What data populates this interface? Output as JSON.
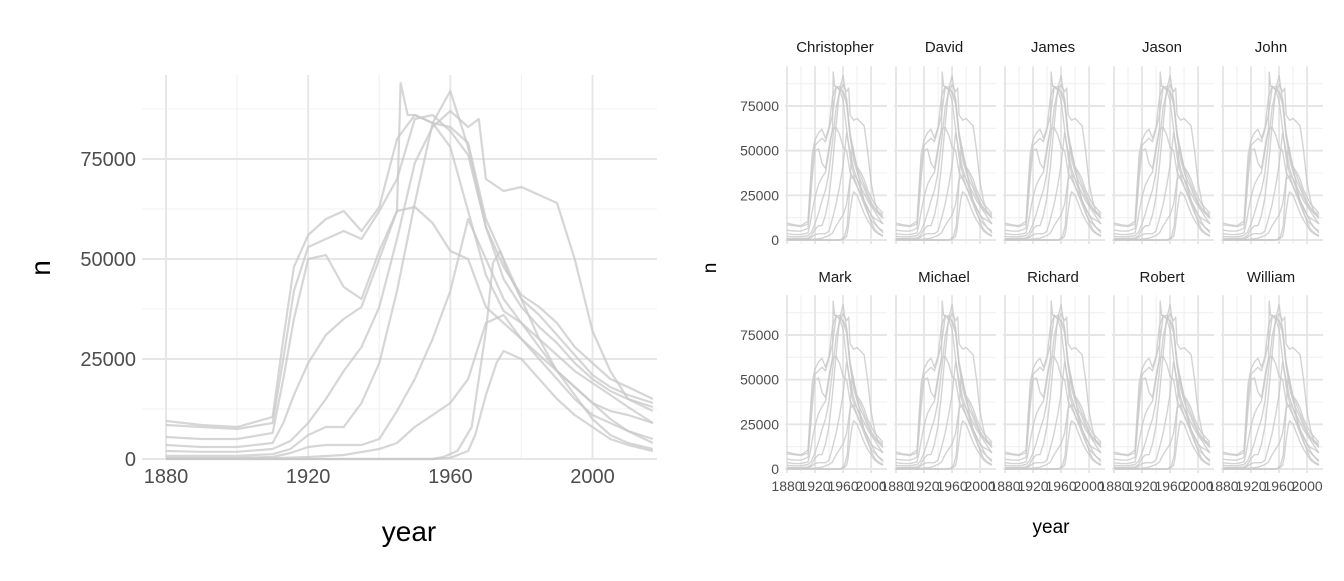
{
  "chart_data": [
    {
      "type": "line",
      "panel": "left",
      "xlabel": "year",
      "ylabel": "n",
      "xlim": [
        1880,
        2017
      ],
      "ylim": [
        0,
        95000
      ],
      "x_ticks": [
        1880,
        1920,
        1960,
        2000
      ],
      "y_ticks": [
        0,
        25000,
        50000,
        75000
      ],
      "grid": true,
      "line_color": "#c8c8c8",
      "series": [
        {
          "x": [
            1880,
            1890,
            1900,
            1910,
            1913,
            1916,
            1920,
            1925,
            1930,
            1935,
            1940,
            1945,
            1950,
            1955,
            1960,
            1965,
            1970,
            1975,
            1980,
            1985,
            1990,
            1995,
            2000,
            2005,
            2010,
            2017
          ],
          "values": [
            9500,
            8500,
            8000,
            10500,
            30000,
            48000,
            56000,
            60000,
            62000,
            57000,
            63000,
            80000,
            86000,
            84000,
            83000,
            79000,
            60000,
            50000,
            40000,
            36000,
            31000,
            26000,
            21000,
            18000,
            16000,
            14000
          ]
        },
        {
          "x": [
            1880,
            1890,
            1900,
            1910,
            1913,
            1916,
            1920,
            1925,
            1930,
            1935,
            1940,
            1945,
            1950,
            1955,
            1960,
            1965,
            1970,
            1975,
            1980,
            1985,
            1990,
            1995,
            2000,
            2005,
            2010,
            2017
          ],
          "values": [
            8500,
            8000,
            7500,
            9000,
            25000,
            42000,
            53000,
            55000,
            57000,
            55000,
            62000,
            70000,
            85000,
            86000,
            82000,
            76000,
            58000,
            45000,
            38000,
            33000,
            29000,
            24000,
            20000,
            17000,
            15000,
            13000
          ]
        },
        {
          "x": [
            1880,
            1890,
            1900,
            1910,
            1913,
            1916,
            1920,
            1925,
            1930,
            1935,
            1940,
            1945,
            1946,
            1948,
            1950,
            1955,
            1960,
            1965,
            1970,
            1975,
            1980,
            1985,
            1990,
            1995,
            2000,
            2005,
            2010,
            2017
          ],
          "values": [
            5500,
            5000,
            5000,
            6500,
            20000,
            35000,
            50000,
            51000,
            43000,
            40000,
            52000,
            62000,
            94000,
            86000,
            86000,
            84000,
            78000,
            62000,
            46000,
            37000,
            34000,
            28000,
            22000,
            18000,
            14000,
            12000,
            11000,
            9000
          ]
        },
        {
          "x": [
            1880,
            1890,
            1900,
            1910,
            1913,
            1916,
            1920,
            1925,
            1930,
            1935,
            1940,
            1945,
            1950,
            1955,
            1960,
            1965,
            1970,
            1975,
            1980,
            1985,
            1990,
            1995,
            2000,
            2005,
            2010,
            2017
          ],
          "values": [
            3500,
            3000,
            3000,
            4000,
            9000,
            16000,
            24000,
            31000,
            35000,
            38000,
            50000,
            62000,
            63000,
            59000,
            52000,
            50000,
            38000,
            34000,
            30000,
            25000,
            20000,
            15000,
            11000,
            9000,
            7000,
            5000
          ]
        },
        {
          "x": [
            1880,
            1890,
            1900,
            1910,
            1915,
            1920,
            1925,
            1930,
            1935,
            1940,
            1945,
            1950,
            1955,
            1960,
            1965,
            1968,
            1970,
            1975,
            1980,
            1985,
            1990,
            1995,
            2000,
            2005,
            2010,
            2017
          ],
          "values": [
            2000,
            1800,
            1800,
            2500,
            4500,
            9000,
            15000,
            22000,
            28000,
            38000,
            55000,
            74000,
            83000,
            87000,
            83000,
            85000,
            70000,
            67000,
            68000,
            66000,
            64000,
            50000,
            32000,
            22000,
            15000,
            12000
          ]
        },
        {
          "x": [
            1880,
            1890,
            1900,
            1910,
            1915,
            1920,
            1925,
            1930,
            1935,
            1940,
            1945,
            1950,
            1955,
            1960,
            1965,
            1970,
            1975,
            1980,
            1985,
            1990,
            1995,
            2000,
            2005,
            2010,
            2017
          ],
          "values": [
            800,
            800,
            800,
            1200,
            2500,
            6000,
            8000,
            8000,
            14000,
            24000,
            42000,
            64000,
            84000,
            92000,
            78000,
            58000,
            48000,
            41000,
            38000,
            34000,
            28000,
            24000,
            20000,
            18000,
            15000
          ]
        },
        {
          "x": [
            1880,
            1890,
            1900,
            1910,
            1915,
            1920,
            1925,
            1930,
            1935,
            1940,
            1945,
            1950,
            1955,
            1960,
            1965,
            1970,
            1975,
            1980,
            1985,
            1990,
            1995,
            2000,
            2005,
            2010,
            2017
          ],
          "values": [
            300,
            300,
            300,
            500,
            1500,
            3000,
            3500,
            3500,
            3500,
            5000,
            12000,
            20000,
            30000,
            42000,
            60000,
            50000,
            40000,
            34000,
            30000,
            26000,
            22000,
            19000,
            16000,
            13000,
            9000
          ]
        },
        {
          "x": [
            1880,
            1890,
            1900,
            1910,
            1920,
            1930,
            1940,
            1945,
            1950,
            1955,
            1960,
            1965,
            1970,
            1975,
            1980,
            1985,
            1990,
            1995,
            2000,
            2005,
            2010,
            2017
          ],
          "values": [
            100,
            100,
            100,
            200,
            500,
            1000,
            2500,
            4000,
            8000,
            11000,
            14000,
            20000,
            34000,
            36000,
            30000,
            26000,
            22000,
            18000,
            14000,
            10000,
            7000,
            4000
          ]
        },
        {
          "x": [
            1880,
            1900,
            1920,
            1940,
            1950,
            1955,
            1958,
            1962,
            1966,
            1970,
            1972,
            1974,
            1976,
            1980,
            1985,
            1990,
            1995,
            2000,
            2005,
            2010,
            2017
          ],
          "values": [
            0,
            0,
            0,
            0,
            0,
            0,
            500,
            2000,
            8000,
            32000,
            49000,
            52000,
            47000,
            40000,
            30000,
            22000,
            16000,
            10000,
            6000,
            4000,
            2500
          ]
        },
        {
          "x": [
            1880,
            1900,
            1920,
            1940,
            1950,
            1955,
            1960,
            1965,
            1967,
            1970,
            1973,
            1975,
            1980,
            1985,
            1990,
            1995,
            2000,
            2005,
            2010,
            2017
          ],
          "values": [
            0,
            0,
            0,
            0,
            0,
            0,
            300,
            2000,
            6000,
            16000,
            24000,
            27000,
            25000,
            20000,
            15000,
            11000,
            8000,
            5000,
            3500,
            2000
          ]
        }
      ]
    },
    {
      "type": "line",
      "panel": "right-facets",
      "xlabel": "year",
      "ylabel": "n",
      "x_ticks": [
        1880,
        1920,
        1960,
        2000
      ],
      "y_ticks": [
        0,
        25000,
        50000,
        75000
      ],
      "facets": [
        "Christopher",
        "David",
        "James",
        "Jason",
        "John",
        "Mark",
        "Michael",
        "Richard",
        "Robert",
        "William"
      ],
      "grid": true,
      "note": "each facet repeats all series"
    }
  ]
}
